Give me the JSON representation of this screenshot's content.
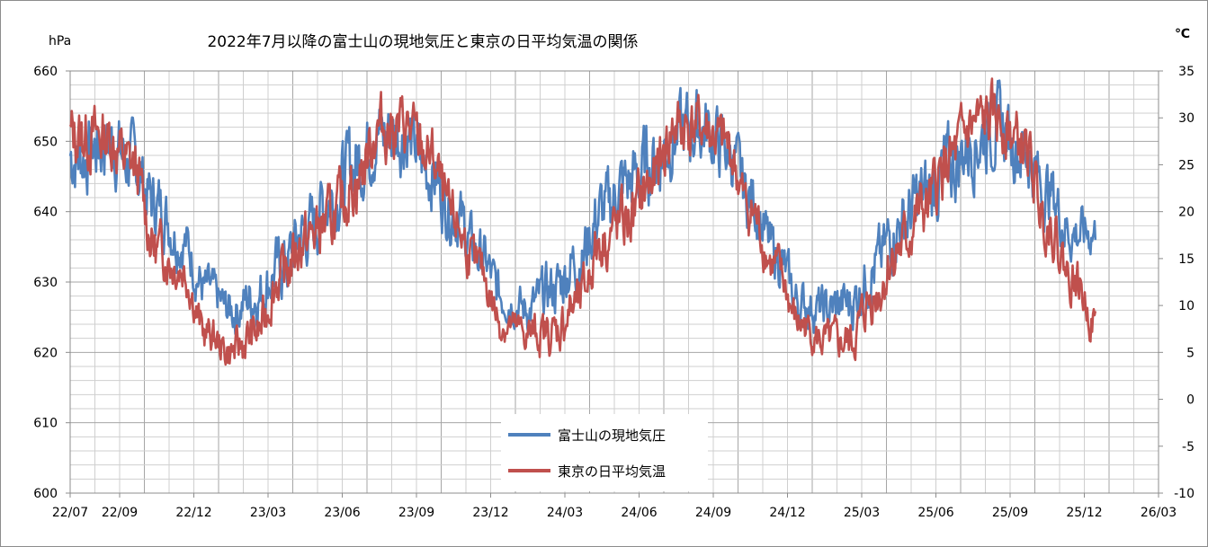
{
  "chart_data": {
    "type": "line",
    "title": "2022年7月以降の富士山の現地気圧と東京の日平均気温の関係",
    "y_left_label": "hPa",
    "y_right_label": "℃",
    "y_left_range": [
      600,
      660
    ],
    "y_right_range": [
      -10,
      35
    ],
    "y_left_ticks": [
      "600",
      "610",
      "620",
      "630",
      "640",
      "650",
      "660"
    ],
    "y_right_ticks": [
      "-10",
      "-5",
      "0",
      "5",
      "10",
      "15",
      "20",
      "25",
      "30",
      "35"
    ],
    "x_ticks": [
      "22/07",
      "22/09",
      "22/12",
      "23/03",
      "23/06",
      "23/09",
      "23/12",
      "24/03",
      "24/06",
      "24/09",
      "24/12",
      "25/03",
      "25/06",
      "25/09",
      "25/12",
      "26/03"
    ],
    "x_range_months": [
      "2022-07",
      "2026-03"
    ],
    "grid": true,
    "legend_placement": "bottom-center",
    "series": [
      {
        "name": "富士山の現地気圧",
        "axis": "left",
        "color": "#4f81bd",
        "monthly_mean_hpa": [
          {
            "x": "2022-07",
            "y": 648
          },
          {
            "x": "2022-08",
            "y": 650
          },
          {
            "x": "2022-09",
            "y": 647
          },
          {
            "x": "2022-10",
            "y": 641
          },
          {
            "x": "2022-11",
            "y": 636
          },
          {
            "x": "2022-12",
            "y": 629
          },
          {
            "x": "2023-01",
            "y": 626
          },
          {
            "x": "2023-02",
            "y": 628
          },
          {
            "x": "2023-03",
            "y": 632
          },
          {
            "x": "2023-04",
            "y": 637
          },
          {
            "x": "2023-05",
            "y": 642
          },
          {
            "x": "2023-06",
            "y": 647
          },
          {
            "x": "2023-07",
            "y": 651
          },
          {
            "x": "2023-08",
            "y": 651
          },
          {
            "x": "2023-09",
            "y": 646
          },
          {
            "x": "2023-10",
            "y": 640
          },
          {
            "x": "2023-11",
            "y": 634
          },
          {
            "x": "2023-12",
            "y": 628
          },
          {
            "x": "2024-01",
            "y": 626
          },
          {
            "x": "2024-02",
            "y": 629
          },
          {
            "x": "2024-03",
            "y": 633
          },
          {
            "x": "2024-04",
            "y": 640
          },
          {
            "x": "2024-05",
            "y": 644
          },
          {
            "x": "2024-06",
            "y": 647
          },
          {
            "x": "2024-07",
            "y": 651
          },
          {
            "x": "2024-08",
            "y": 652
          },
          {
            "x": "2024-09",
            "y": 649
          },
          {
            "x": "2024-10",
            "y": 642
          },
          {
            "x": "2024-11",
            "y": 634
          },
          {
            "x": "2024-12",
            "y": 627
          },
          {
            "x": "2025-01",
            "y": 626
          },
          {
            "x": "2025-02",
            "y": 627
          },
          {
            "x": "2025-03",
            "y": 632
          },
          {
            "x": "2025-04",
            "y": 638
          },
          {
            "x": "2025-05",
            "y": 642
          },
          {
            "x": "2025-06",
            "y": 646
          },
          {
            "x": "2025-07",
            "y": 650
          },
          {
            "x": "2025-08",
            "y": 652
          },
          {
            "x": "2025-09",
            "y": 649
          },
          {
            "x": "2025-10",
            "y": 643
          },
          {
            "x": "2025-11",
            "y": 637
          },
          {
            "x": "2025-12",
            "y": 637
          }
        ]
      },
      {
        "name": "東京の日平均気温",
        "axis": "right",
        "color": "#c0504d",
        "monthly_mean_c": [
          {
            "x": "2022-07",
            "y": 28
          },
          {
            "x": "2022-08",
            "y": 28
          },
          {
            "x": "2022-09",
            "y": 25
          },
          {
            "x": "2022-10",
            "y": 16
          },
          {
            "x": "2022-11",
            "y": 14
          },
          {
            "x": "2022-12",
            "y": 7
          },
          {
            "x": "2023-01",
            "y": 5
          },
          {
            "x": "2023-02",
            "y": 7
          },
          {
            "x": "2023-03",
            "y": 13
          },
          {
            "x": "2023-04",
            "y": 17
          },
          {
            "x": "2023-05",
            "y": 19
          },
          {
            "x": "2023-06",
            "y": 23
          },
          {
            "x": "2023-07",
            "y": 29
          },
          {
            "x": "2023-08",
            "y": 29
          },
          {
            "x": "2023-09",
            "y": 26
          },
          {
            "x": "2023-10",
            "y": 19
          },
          {
            "x": "2023-11",
            "y": 14
          },
          {
            "x": "2023-12",
            "y": 8
          },
          {
            "x": "2024-01",
            "y": 7
          },
          {
            "x": "2024-02",
            "y": 7
          },
          {
            "x": "2024-03",
            "y": 10
          },
          {
            "x": "2024-04",
            "y": 17
          },
          {
            "x": "2024-05",
            "y": 19
          },
          {
            "x": "2024-06",
            "y": 23
          },
          {
            "x": "2024-07",
            "y": 29
          },
          {
            "x": "2024-08",
            "y": 29
          },
          {
            "x": "2024-09",
            "y": 27
          },
          {
            "x": "2024-10",
            "y": 20
          },
          {
            "x": "2024-11",
            "y": 14
          },
          {
            "x": "2024-12",
            "y": 8
          },
          {
            "x": "2025-01",
            "y": 6
          },
          {
            "x": "2025-02",
            "y": 6
          },
          {
            "x": "2025-03",
            "y": 11
          },
          {
            "x": "2025-04",
            "y": 16
          },
          {
            "x": "2025-05",
            "y": 20
          },
          {
            "x": "2025-06",
            "y": 25
          },
          {
            "x": "2025-07",
            "y": 29
          },
          {
            "x": "2025-08",
            "y": 30
          },
          {
            "x": "2025-09",
            "y": 27
          },
          {
            "x": "2025-10",
            "y": 19
          },
          {
            "x": "2025-11",
            "y": 13
          },
          {
            "x": "2025-12",
            "y": 8
          }
        ]
      }
    ]
  }
}
